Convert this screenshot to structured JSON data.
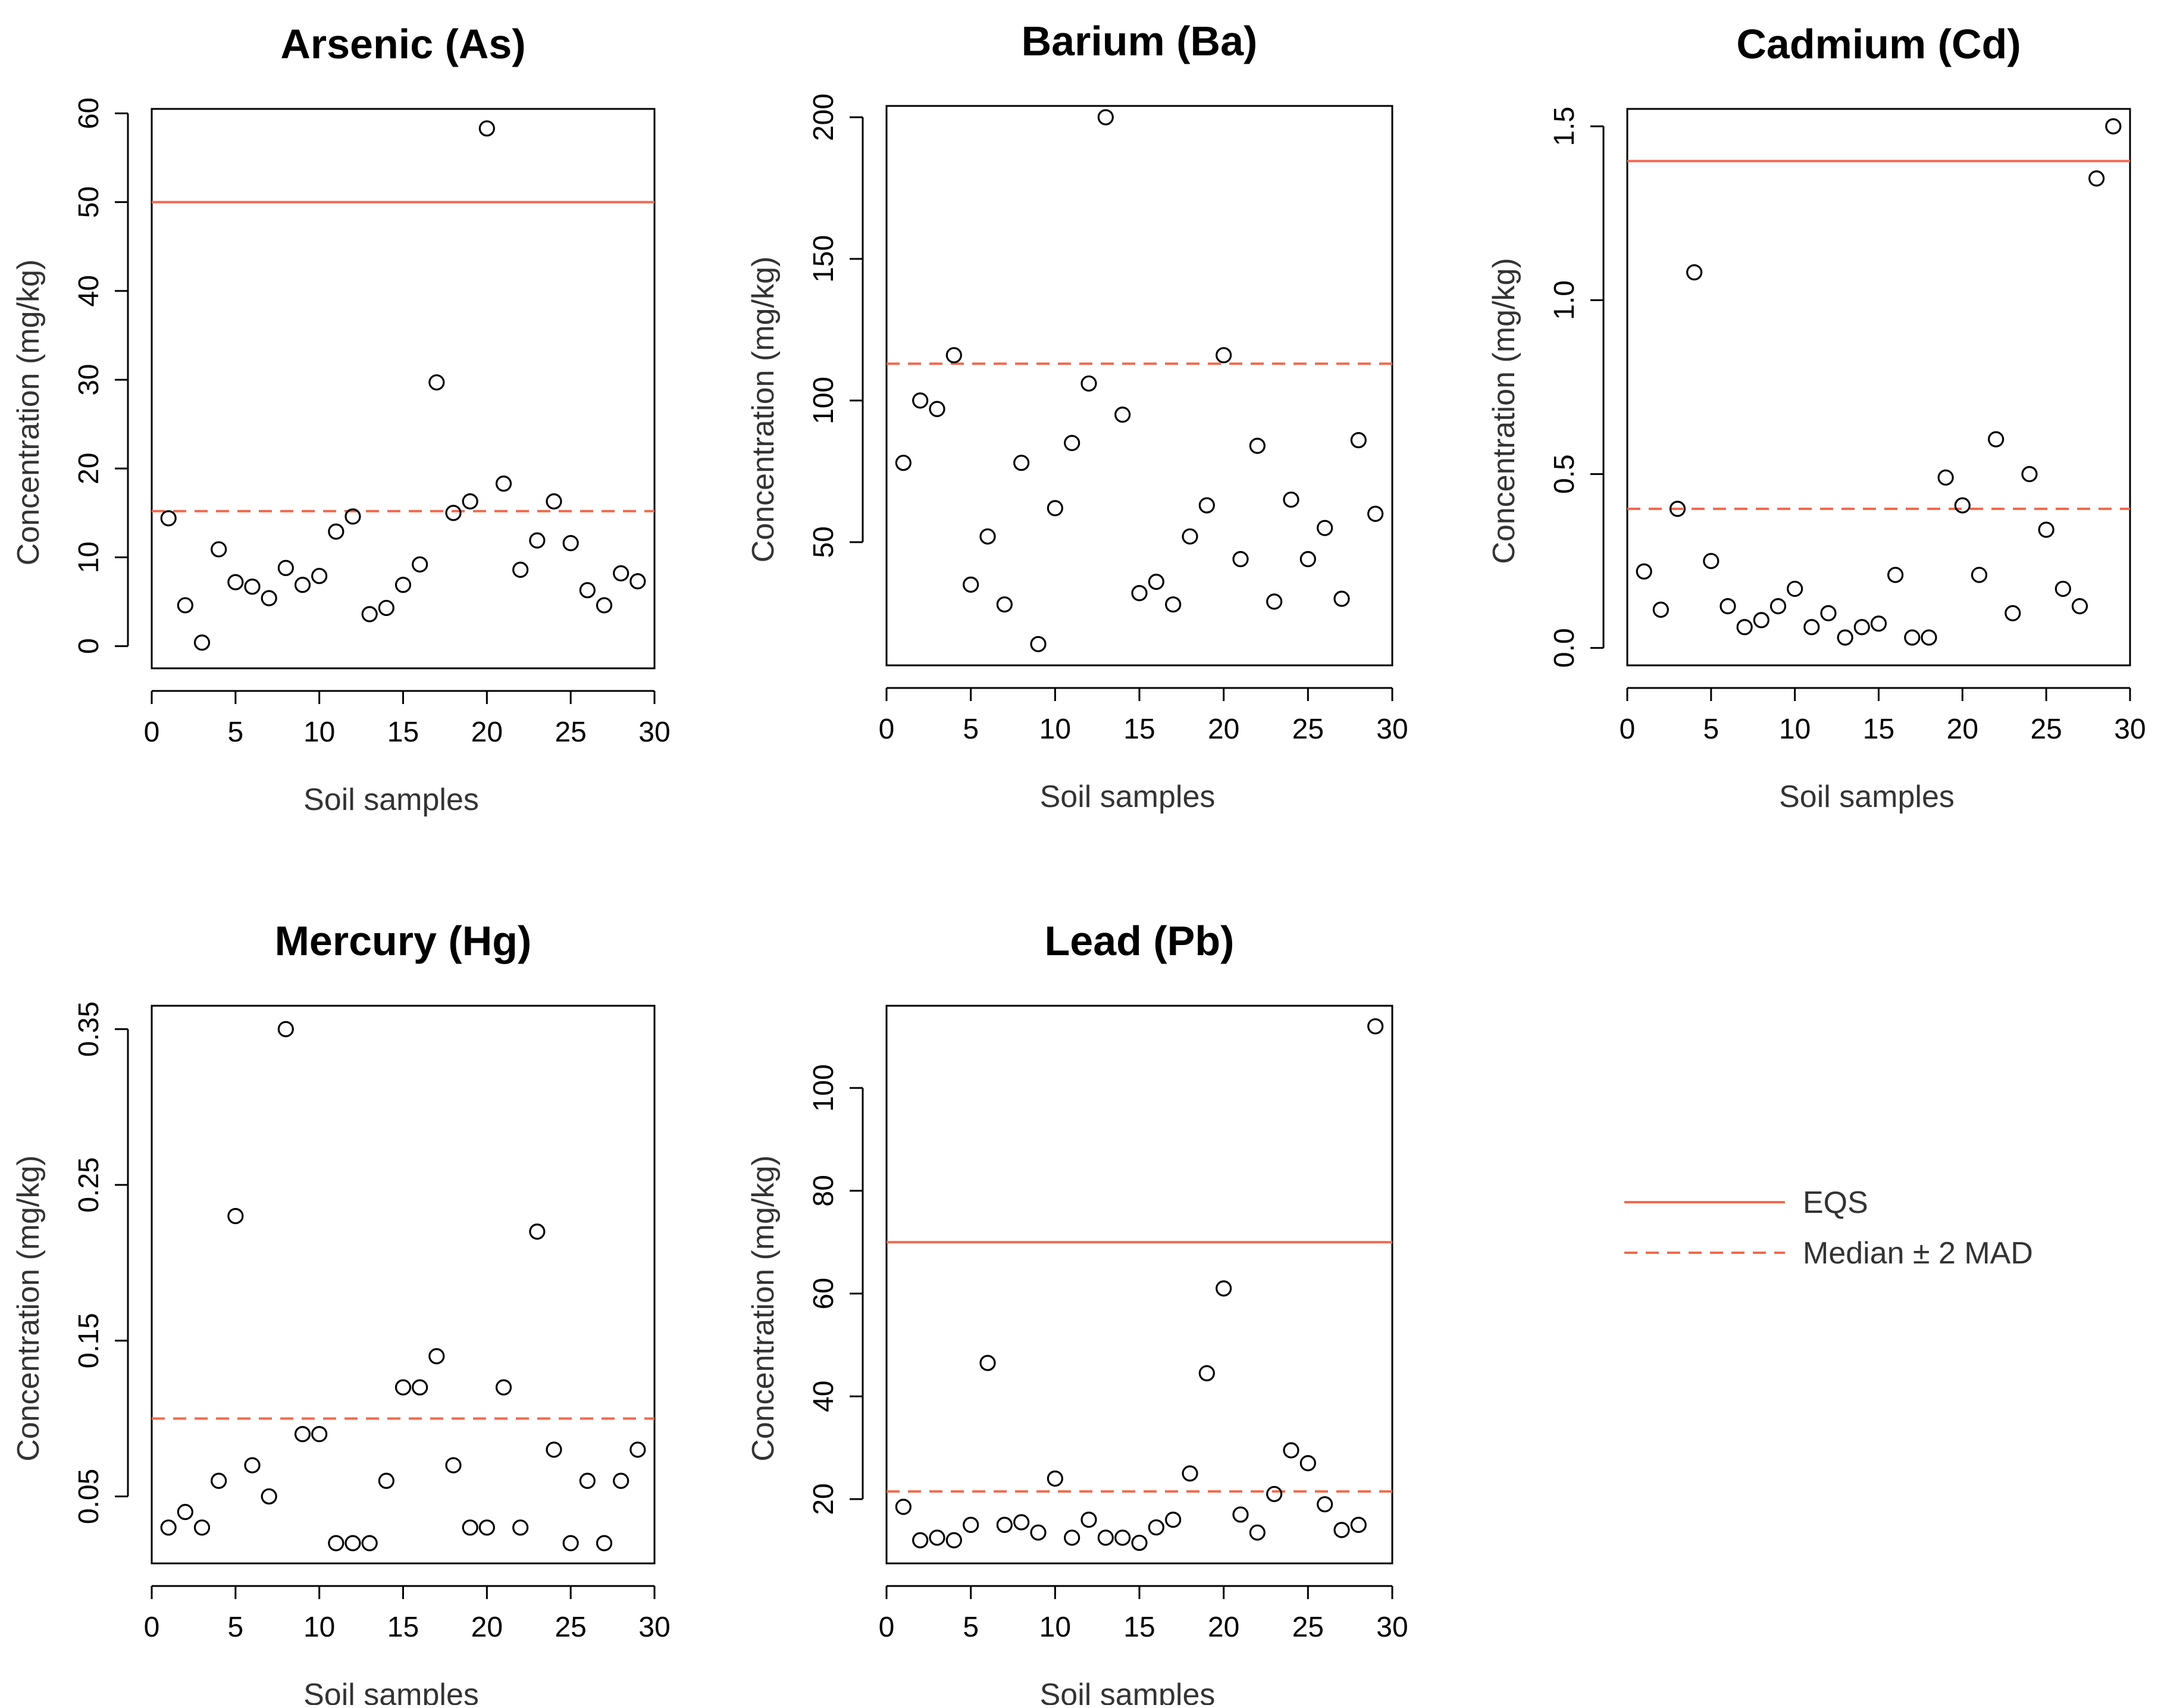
{
  "colors": {
    "eqs": "#f26a4f",
    "mad": "#f26a4f",
    "point": "#000000",
    "axis": "#000000"
  },
  "legend": {
    "position": "right-middle",
    "eqs_label": "EQS",
    "mad_label": "Median ± 2 MAD"
  },
  "chart_data": [
    {
      "type": "scatter",
      "title": "Arsenic (As)",
      "xlabel": "Soil samples",
      "ylabel": "Concentration (mg/kg)",
      "xlim": [
        0,
        30
      ],
      "ylim": [
        -2.5,
        60.5
      ],
      "xticks": [
        0,
        5,
        10,
        15,
        20,
        25,
        30
      ],
      "xtick_labels": [
        "0",
        "5",
        "10",
        "15",
        "20",
        "25",
        "30"
      ],
      "yticks": [
        0,
        10,
        20,
        30,
        40,
        50,
        60
      ],
      "ytick_labels": [
        "0",
        "10",
        "20",
        "30",
        "40",
        "50",
        "60"
      ],
      "eqs": 50,
      "mad": 15.2,
      "x": [
        1,
        2,
        3,
        4,
        5,
        6,
        7,
        8,
        9,
        10,
        11,
        12,
        13,
        14,
        15,
        16,
        17,
        18,
        19,
        20,
        21,
        22,
        23,
        24,
        25,
        26,
        27,
        28,
        29
      ],
      "y": [
        14.4,
        4.6,
        0.4,
        10.9,
        7.2,
        6.7,
        5.4,
        8.8,
        6.9,
        7.9,
        12.9,
        14.6,
        3.6,
        4.3,
        6.9,
        9.2,
        29.7,
        15.0,
        16.3,
        58.3,
        18.3,
        8.6,
        11.9,
        16.3,
        11.6,
        6.3,
        4.6,
        8.2,
        7.3
      ]
    },
    {
      "type": "scatter",
      "title": "Barium (Ba)",
      "xlabel": "Soil samples",
      "ylabel": "Concentration (mg/kg)",
      "xlim": [
        0,
        30
      ],
      "ylim": [
        6.5,
        204
      ],
      "xticks": [
        0,
        5,
        10,
        15,
        20,
        25,
        30
      ],
      "xtick_labels": [
        "0",
        "5",
        "10",
        "15",
        "20",
        "25",
        "30"
      ],
      "yticks": [
        50,
        100,
        150,
        200
      ],
      "ytick_labels": [
        "50",
        "100",
        "150",
        "200"
      ],
      "eqs": null,
      "mad": 113,
      "x": [
        1,
        2,
        3,
        4,
        5,
        6,
        7,
        8,
        9,
        10,
        11,
        12,
        13,
        14,
        15,
        16,
        17,
        18,
        19,
        20,
        21,
        22,
        23,
        24,
        25,
        26,
        27,
        28,
        29
      ],
      "y": [
        78,
        100,
        97,
        116,
        35,
        52,
        28,
        78,
        14,
        62,
        85,
        106,
        200,
        95,
        32,
        36,
        28,
        52,
        63,
        116,
        44,
        84,
        29,
        65,
        44,
        55,
        30,
        86,
        60
      ]
    },
    {
      "type": "scatter",
      "title": "Cadmium (Cd)",
      "xlabel": "Soil samples",
      "ylabel": "Concentration (mg/kg)",
      "xlim": [
        0,
        30
      ],
      "ylim": [
        -0.05,
        1.55
      ],
      "xticks": [
        0,
        5,
        10,
        15,
        20,
        25,
        30
      ],
      "xtick_labels": [
        "0",
        "5",
        "10",
        "15",
        "20",
        "25",
        "30"
      ],
      "yticks": [
        0.0,
        0.5,
        1.0,
        1.5
      ],
      "ytick_labels": [
        "0.0",
        "0.5",
        "1.0",
        "1.5"
      ],
      "eqs": 1.4,
      "mad": 0.4,
      "x": [
        1,
        2,
        3,
        4,
        5,
        6,
        7,
        8,
        9,
        10,
        11,
        12,
        13,
        14,
        15,
        16,
        17,
        18,
        19,
        20,
        21,
        22,
        23,
        24,
        25,
        26,
        27,
        28,
        29
      ],
      "y": [
        0.22,
        0.11,
        0.4,
        1.08,
        0.25,
        0.12,
        0.06,
        0.08,
        0.12,
        0.17,
        0.06,
        0.1,
        0.03,
        0.06,
        0.07,
        0.21,
        0.03,
        0.03,
        0.49,
        0.41,
        0.21,
        0.6,
        0.1,
        0.5,
        0.34,
        0.17,
        0.12,
        1.35,
        1.5
      ]
    },
    {
      "type": "scatter",
      "title": "Mercury (Hg)",
      "xlabel": "Soil samples",
      "ylabel": "Concentration (mg/kg)",
      "xlim": [
        0,
        30
      ],
      "ylim": [
        0.007,
        0.365
      ],
      "xticks": [
        0,
        5,
        10,
        15,
        20,
        25,
        30
      ],
      "xtick_labels": [
        "0",
        "5",
        "10",
        "15",
        "20",
        "25",
        "30"
      ],
      "yticks": [
        0.05,
        0.15,
        0.25,
        0.35
      ],
      "ytick_labels": [
        "0.05",
        "0.15",
        "0.25",
        "0.35"
      ],
      "eqs": null,
      "mad": 0.1,
      "x": [
        1,
        2,
        3,
        4,
        5,
        6,
        7,
        8,
        9,
        10,
        11,
        12,
        13,
        14,
        15,
        16,
        17,
        18,
        19,
        20,
        21,
        22,
        23,
        24,
        25,
        26,
        27,
        28,
        29
      ],
      "y": [
        0.03,
        0.04,
        0.03,
        0.06,
        0.23,
        0.07,
        0.05,
        0.35,
        0.09,
        0.09,
        0.02,
        0.02,
        0.02,
        0.06,
        0.12,
        0.12,
        0.14,
        0.07,
        0.03,
        0.03,
        0.12,
        0.03,
        0.22,
        0.08,
        0.02,
        0.06,
        0.02,
        0.06,
        0.08
      ]
    },
    {
      "type": "scatter",
      "title": "Lead (Pb)",
      "xlabel": "Soil samples",
      "ylabel": "Concentration (mg/kg)",
      "xlim": [
        0,
        30
      ],
      "ylim": [
        7.5,
        116
      ],
      "xticks": [
        0,
        5,
        10,
        15,
        20,
        25,
        30
      ],
      "xtick_labels": [
        "0",
        "5",
        "10",
        "15",
        "20",
        "25",
        "30"
      ],
      "yticks": [
        20,
        40,
        60,
        80,
        100
      ],
      "ytick_labels": [
        "20",
        "40",
        "60",
        "80",
        "100"
      ],
      "eqs": 70,
      "mad": 21.5,
      "x": [
        1,
        2,
        3,
        4,
        5,
        6,
        7,
        8,
        9,
        10,
        11,
        12,
        13,
        14,
        15,
        16,
        17,
        18,
        19,
        20,
        21,
        22,
        23,
        24,
        25,
        26,
        27,
        28,
        29
      ],
      "y": [
        18.5,
        12,
        12.5,
        12,
        15,
        46.5,
        15,
        15.5,
        13.5,
        24,
        12.5,
        16,
        12.5,
        12.5,
        11.5,
        14.5,
        16,
        25,
        44.5,
        61,
        17,
        13.5,
        21,
        29.5,
        27,
        19,
        14,
        15,
        112
      ]
    }
  ]
}
